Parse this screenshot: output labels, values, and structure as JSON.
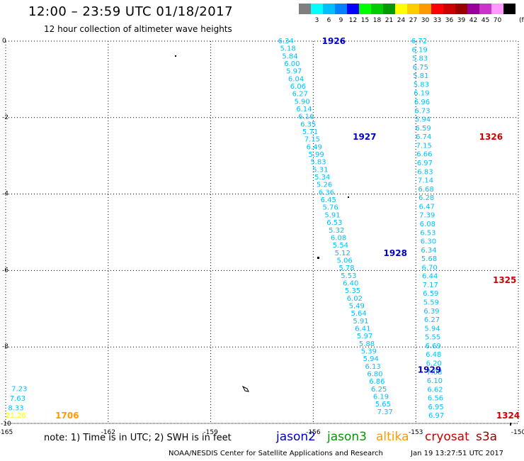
{
  "header": {
    "title": "12:00 – 23:59 UTC 01/18/2017",
    "subtitle": "12 hour collection of altimeter wave heights"
  },
  "color_scale": {
    "unit": "(ft)",
    "bins": [
      {
        "label": "",
        "color": "#7f7f7f"
      },
      {
        "label": "3",
        "color": "#00ffff"
      },
      {
        "label": "6",
        "color": "#00bfff"
      },
      {
        "label": "9",
        "color": "#007fff"
      },
      {
        "label": "12",
        "color": "#0000ff"
      },
      {
        "label": "15",
        "color": "#00ff00"
      },
      {
        "label": "18",
        "color": "#00cc00"
      },
      {
        "label": "21",
        "color": "#009900"
      },
      {
        "label": "24",
        "color": "#ffff00"
      },
      {
        "label": "27",
        "color": "#ffcc00"
      },
      {
        "label": "30",
        "color": "#ff9900"
      },
      {
        "label": "33",
        "color": "#ff0000"
      },
      {
        "label": "36",
        "color": "#cc0000"
      },
      {
        "label": "39",
        "color": "#990000"
      },
      {
        "label": "42",
        "color": "#990099"
      },
      {
        "label": "45",
        "color": "#cc33cc"
      },
      {
        "label": "70",
        "color": "#ff99ff"
      },
      {
        "label": "",
        "color": "#000000"
      }
    ]
  },
  "chart_data": {
    "type": "scatter",
    "title": "12:00 – 23:59 UTC 01/18/2017",
    "subtitle": "12 hour collection of altimeter wave heights",
    "xlabel": "",
    "ylabel": "",
    "xlim": [
      -165,
      -150
    ],
    "ylim": [
      -10,
      0
    ],
    "x_ticks": [
      -165,
      -162,
      -159,
      -156,
      -153,
      -150
    ],
    "x_tick_labels": [
      "-165",
      "-162",
      "-159",
      "-156",
      "-153",
      "-150"
    ],
    "y_ticks": [
      0,
      -2,
      -4,
      -6,
      -8,
      -10
    ],
    "y_tick_labels": [
      "0",
      "-2",
      "-4",
      "-6",
      "-8",
      "-10"
    ],
    "grid": true,
    "value_color": "#00bfff",
    "tracks": [
      {
        "satellite": "jason2",
        "start": [
          -156.8,
          0.0
        ],
        "end": [
          -153.9,
          -9.7
        ],
        "values": [
          "6.34",
          "5.18",
          "5.84",
          "6.00",
          "5.97",
          "6.04",
          "6.06",
          "6.27",
          "5.90",
          "6.14",
          "6.16",
          "6.35",
          "5.71",
          "7.15",
          "6.49",
          "5.99",
          "5.83",
          "5.31",
          "5.34",
          "5.26",
          "6.36",
          "6.45",
          "5.76",
          "5.91",
          "6.53",
          "5.32",
          "6.08",
          "5.54",
          "5.12",
          "5.06",
          "5.78",
          "5.53",
          "6.40",
          "5.35",
          "6.02",
          "5.49",
          "5.64",
          "5.91",
          "6.41",
          "5.97",
          "5.88",
          "5.39",
          "5.94",
          "6.13",
          "6.80",
          "6.86",
          "6.25",
          "6.19",
          "5.65",
          "7.37"
        ]
      },
      {
        "satellite": "cryosat",
        "start": [
          -152.9,
          0.0
        ],
        "end": [
          -152.4,
          -9.8
        ],
        "values": [
          "6.72",
          "6.19",
          "5.83",
          "6.75",
          "5.81",
          "5.83",
          "6.19",
          "6.96",
          "6.73",
          "5.94",
          "6.59",
          "6.74",
          "7.15",
          "6.66",
          "6.97",
          "6.83",
          "7.14",
          "6.68",
          "6.28",
          "6.47",
          "7.39",
          "6.08",
          "6.53",
          "6.30",
          "6.34",
          "5.68",
          "6.70",
          "6.44",
          "7.17",
          "6.59",
          "5.59",
          "6.39",
          "6.27",
          "5.94",
          "5.55",
          "6.69",
          "6.48",
          "6.20",
          "7.08",
          "6.10",
          "6.62",
          "6.56",
          "6.95",
          "6.97"
        ]
      },
      {
        "satellite": "cryosat",
        "start": [
          -164.6,
          -9.1
        ],
        "end": [
          -164.7,
          -9.6
        ],
        "values": [
          "7.23",
          "7.63",
          "8.33"
        ]
      }
    ],
    "time_labels": [
      {
        "text": "1926",
        "x": -155.4,
        "y": 0.0,
        "satellite": "jason2"
      },
      {
        "text": "1927",
        "x": -154.5,
        "y": -2.5,
        "satellite": "jason2"
      },
      {
        "text": "1928",
        "x": -153.6,
        "y": -5.55,
        "satellite": "jason2"
      },
      {
        "text": "1929",
        "x": -152.6,
        "y": -8.6,
        "satellite": "jason2"
      },
      {
        "text": "1326",
        "x": -150.8,
        "y": -2.5,
        "satellite": "cryosat"
      },
      {
        "text": "1325",
        "x": -150.4,
        "y": -6.25,
        "satellite": "cryosat"
      },
      {
        "text": "1324",
        "x": -150.3,
        "y": -9.8,
        "satellite": "cryosat"
      },
      {
        "text": "1706",
        "x": -163.2,
        "y": -9.8,
        "satellite": "altika"
      }
    ],
    "special_values": [
      {
        "text": "21.26",
        "x": -164.7,
        "y": -9.8,
        "color": "#ffff00"
      }
    ]
  },
  "footer": {
    "note": "note: 1) Time is in UTC; 2) SWH is in feet",
    "satellites": [
      {
        "name": "jason2",
        "color": "#0000cc"
      },
      {
        "name": "jason3",
        "color": "#009900"
      },
      {
        "name": "altika",
        "color": "#ff9900"
      },
      {
        "name": "cryosat",
        "color": "#cc0000"
      },
      {
        "name": "s3a",
        "color": "#990000"
      }
    ],
    "credit": "NOAA/NESDIS Center for Satellite Applications and Research",
    "timestamp": "Jan 19 13:27:51 UTC 2017"
  }
}
